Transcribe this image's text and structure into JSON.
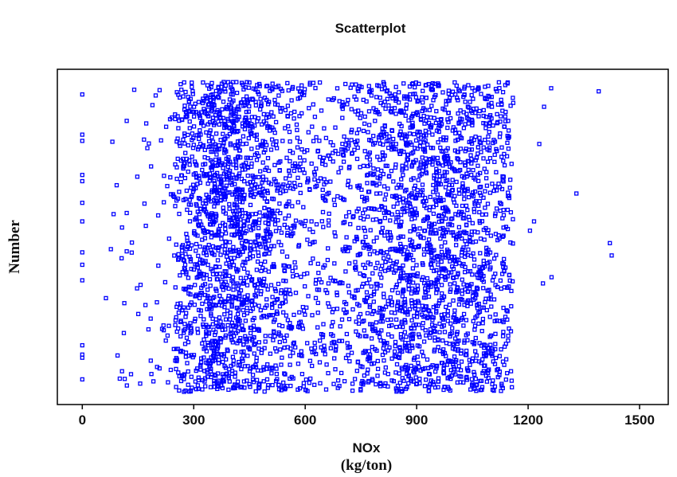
{
  "chart_data": {
    "type": "scatter",
    "title": "Scatterplot",
    "xlabel": "NOx",
    "xlabel_unit": "(kg/ton)",
    "ylabel": "Number",
    "xlim": [
      -50,
      1560
    ],
    "ylim": [
      0,
      1
    ],
    "x_ticks": [
      0,
      300,
      600,
      900,
      1200,
      1500
    ],
    "x_tick_labels": [
      "0",
      "300",
      "600",
      "900",
      "1200",
      "1500"
    ],
    "y_ticks_shown": false,
    "grid": false,
    "legend": "none",
    "marker": "open-square",
    "color": "#0000ff",
    "approx_point_count": 4000,
    "distribution_note": "dense bands around 300-450 and 800-1100; sparse points near 0 and beyond 1200",
    "series": [
      {
        "values": [
          {
            "x": 0,
            "y": 0.96
          },
          {
            "x": 0,
            "y": 0.83
          },
          {
            "x": 0,
            "y": 0.81
          },
          {
            "x": 0,
            "y": 0.7
          },
          {
            "x": 0,
            "y": 0.68
          },
          {
            "x": 0,
            "y": 0.61
          },
          {
            "x": 0,
            "y": 0.55
          },
          {
            "x": 0,
            "y": 0.45
          },
          {
            "x": 0,
            "y": 0.41
          },
          {
            "x": 0,
            "y": 0.36
          },
          {
            "x": 0,
            "y": 0.15
          },
          {
            "x": 0,
            "y": 0.12
          },
          {
            "x": 0,
            "y": 0.11
          },
          {
            "x": 0,
            "y": 0.04
          },
          {
            "x": 1262,
            "y": 0.98
          },
          {
            "x": 1243,
            "y": 0.92
          },
          {
            "x": 1230,
            "y": 0.8
          },
          {
            "x": 1216,
            "y": 0.55
          },
          {
            "x": 1205,
            "y": 0.52
          },
          {
            "x": 1240,
            "y": 0.35
          },
          {
            "x": 1330,
            "y": 0.64
          },
          {
            "x": 1390,
            "y": 0.97
          },
          {
            "x": 1420,
            "y": 0.48
          },
          {
            "x": 1425,
            "y": 0.44
          },
          {
            "x": 1263,
            "y": 0.37
          }
        ]
      }
    ]
  }
}
